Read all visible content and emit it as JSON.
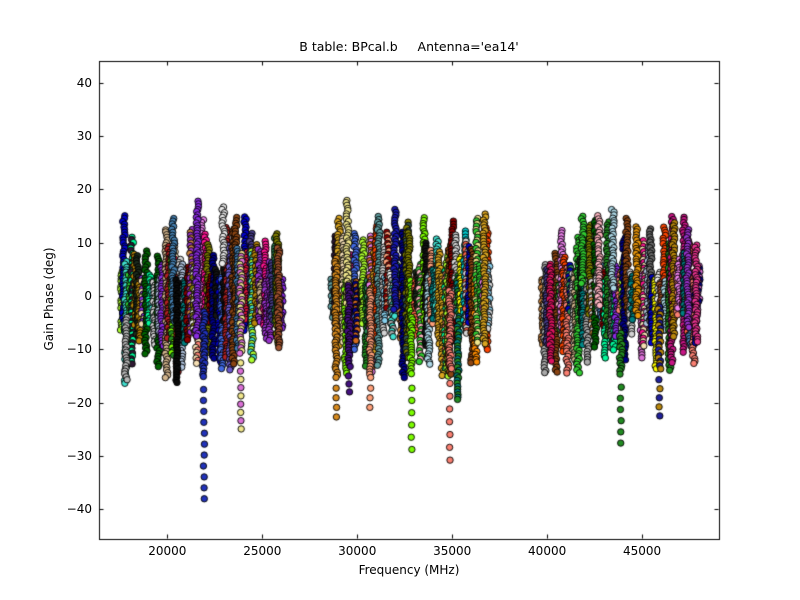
{
  "figure": {
    "background_color": "#ffffff",
    "frame_color": "#000000"
  },
  "chart_data": {
    "type": "scatter",
    "title": "B table: BPcal.b     Antenna='ea14'",
    "xlabel": "Frequency (MHz)",
    "ylabel": "Gain Phase (deg)",
    "xlim": [
      16400,
      49050
    ],
    "ylim": [
      -45.6,
      44.1
    ],
    "xticks": [
      20000,
      25000,
      30000,
      35000,
      40000,
      45000
    ],
    "yticks": [
      -40,
      -30,
      -20,
      -10,
      0,
      10,
      20,
      30,
      40
    ],
    "grid": false,
    "legend": "none",
    "tick_direction": "in",
    "marker": {
      "shape": "circle",
      "radius_px": 3.2,
      "edge_color": "#000000"
    },
    "description": "Bandpass calibration phase solutions: dense vertical strips of colored circle markers (one colored strip per spectral window, many channels each) in three frequency clusters, phases mostly between -16 and +18 deg with a few strips trailing to -38 deg.",
    "seed": 20,
    "palette": [
      "#4682B4",
      "#6A5ACD",
      "#8A2BE2",
      "#9932CC",
      "#DA70D6",
      "#EE82EE",
      "#C71585",
      "#FF1493",
      "#DC143C",
      "#B22222",
      "#8B0000",
      "#FF4500",
      "#FF6347",
      "#FA8072",
      "#FF8C00",
      "#DAA520",
      "#B8860B",
      "#D2B48C",
      "#F5DEB3",
      "#F0E68C",
      "#FFFF00",
      "#ADFF2F",
      "#7CFC00",
      "#32CD32",
      "#228B22",
      "#006400",
      "#2E8B57",
      "#808000",
      "#00FA9A",
      "#40E0D0",
      "#00CED1",
      "#008B8B",
      "#008080",
      "#5F9EA0",
      "#87CEEB",
      "#ADD8E6",
      "#B0C4DE",
      "#4169E1",
      "#0000CD",
      "#00008B",
      "#483D8B",
      "#2F4F4F",
      "#696969",
      "#A9A9A9",
      "#D3D3D3",
      "#F2F2F2",
      "#8B4513",
      "#A0522D",
      "#D2691E",
      "#CD853F",
      "#FFB6C1",
      "#FFA07A",
      "#151515",
      "#1C2B1C",
      "#301934"
    ],
    "bands": [
      {
        "name": "cluster-1",
        "x_range_mhz": [
          17500,
          26050
        ],
        "typical_y_range_deg": [
          -16,
          17
        ],
        "n_strips": 58
      },
      {
        "name": "cluster-2",
        "x_range_mhz": [
          28650,
          37000
        ],
        "typical_y_range_deg": [
          -16,
          18
        ],
        "n_strips": 58
      },
      {
        "name": "cluster-3",
        "x_range_mhz": [
          39700,
          48080
        ],
        "typical_y_range_deg": [
          -15,
          16
        ],
        "n_strips": 58
      }
    ],
    "featured_strips": [
      {
        "x_mhz": 17820,
        "colors": [
          "#B8B8B8"
        ],
        "solid": [
          -4,
          -15.8
        ]
      },
      {
        "x_mhz": 20300,
        "colors": [
          "#4682B4"
        ],
        "solid": [
          14.5,
          -5
        ]
      },
      {
        "x_mhz": 20520,
        "colors": [
          "#0B0B0B"
        ],
        "solid": [
          3,
          -16.5
        ]
      },
      {
        "x_mhz": 21570,
        "colors": [
          "#8A2BE2"
        ],
        "solid": [
          17.8,
          -8
        ]
      },
      {
        "x_mhz": 21930,
        "colors": [
          "#2233BB"
        ],
        "solid": [
          -3,
          -15.5
        ],
        "spaced": [
          -15.5,
          -38.3,
          2.05
        ]
      },
      {
        "x_mhz": 22950,
        "colors": [
          "#EAEAEA"
        ],
        "solid": [
          16.7,
          6
        ]
      },
      {
        "x_mhz": 23870,
        "colors": [
          "#F0E68C",
          "#DA70D6"
        ],
        "solid": [
          8,
          -11
        ],
        "spaced": [
          -11,
          -25.5,
          1.55
        ]
      },
      {
        "x_mhz": 25850,
        "colors": [
          "#A0522D"
        ],
        "solid": [
          9,
          -10
        ]
      },
      {
        "x_mhz": 28890,
        "colors": [
          "#D78A1E"
        ],
        "solid": [
          7,
          -15.5
        ],
        "spaced": [
          -15.5,
          -23.9,
          1.8
        ]
      },
      {
        "x_mhz": 29480,
        "colors": [
          "#F0E68C"
        ],
        "solid": [
          18,
          -2
        ]
      },
      {
        "x_mhz": 29560,
        "colors": [
          "#42107E"
        ],
        "solid": [
          2,
          -13.5
        ],
        "spaced": [
          -13.5,
          -18.7,
          1.5
        ]
      },
      {
        "x_mhz": 30690,
        "colors": [
          "#FFA07A"
        ],
        "solid": [
          1,
          -15.5
        ],
        "spaced": [
          -15.5,
          -21.4,
          1.8
        ]
      },
      {
        "x_mhz": 31990,
        "colors": [
          "#1A1AB4"
        ],
        "solid": [
          16.2,
          -3
        ]
      },
      {
        "x_mhz": 32850,
        "colors": [
          "#7CFC00"
        ],
        "solid": [
          -4,
          -15
        ],
        "spaced": [
          -15,
          -31,
          2.3
        ]
      },
      {
        "x_mhz": 34890,
        "colors": [
          "#FA8072"
        ],
        "solid": [
          1,
          -14
        ],
        "spaced": [
          -14,
          -31.3,
          2.4
        ]
      },
      {
        "x_mhz": 36700,
        "colors": [
          "#DAA520"
        ],
        "solid": [
          15.3,
          -9.2
        ]
      },
      {
        "x_mhz": 40180,
        "colors": [
          "#DC1460"
        ],
        "solid": [
          6,
          -12.5
        ]
      },
      {
        "x_mhz": 41870,
        "colors": [
          "#32CD32"
        ],
        "solid": [
          15,
          2
        ]
      },
      {
        "x_mhz": 42720,
        "colors": [
          "#FFB6C1"
        ],
        "solid": [
          15,
          -2
        ]
      },
      {
        "x_mhz": 43450,
        "colors": [
          "#ADD8E6"
        ],
        "solid": [
          16.2,
          1
        ]
      },
      {
        "x_mhz": 43880,
        "colors": [
          "#228B22"
        ],
        "solid": [
          -7,
          -15
        ],
        "spaced": [
          -15,
          -28,
          2.1
        ]
      },
      {
        "x_mhz": 44730,
        "colors": [
          "#E8950A"
        ],
        "solid": [
          13,
          -4
        ]
      },
      {
        "x_mhz": 45910,
        "colors": [
          "#20209A",
          "#B8860B"
        ],
        "solid": [
          -2,
          -14
        ],
        "spaced": [
          -14,
          -23.7,
          1.7
        ]
      },
      {
        "x_mhz": 47400,
        "colors": [
          "#9932CC"
        ],
        "solid": [
          12.4,
          -6
        ]
      },
      {
        "x_mhz": 47850,
        "colors": [
          "#E8338F"
        ],
        "solid": [
          9.6,
          -9
        ]
      }
    ]
  }
}
